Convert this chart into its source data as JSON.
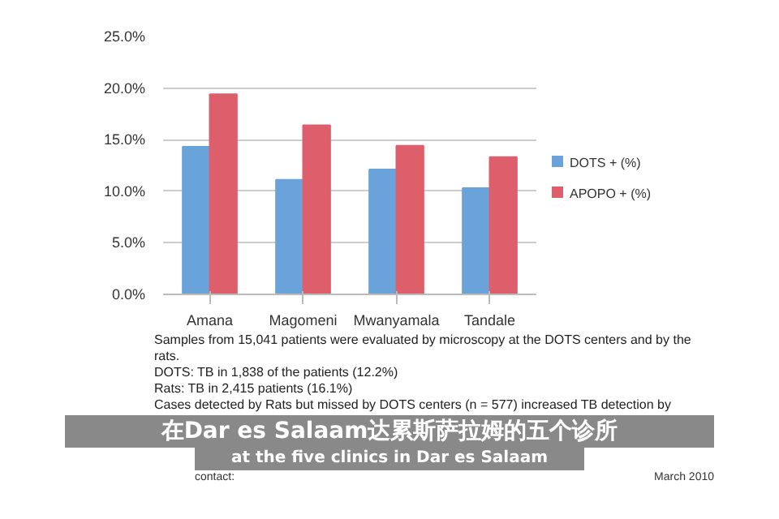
{
  "chart_data": {
    "type": "bar",
    "categories": [
      "Amana",
      "Magomeni",
      "Mwanyamala",
      "Tandale"
    ],
    "series": [
      {
        "name": "DOTS + (%)",
        "color": "#6aa3d9",
        "values": [
          14.3,
          11.1,
          12.1,
          10.3
        ]
      },
      {
        "name": "APOPO + (%)",
        "color": "#dd5f6c",
        "values": [
          19.4,
          16.4,
          14.4,
          13.3
        ]
      }
    ],
    "ylim": [
      0,
      25
    ],
    "yticks": [
      {
        "value": 0,
        "label": "0.0%"
      },
      {
        "value": 5,
        "label": "5.0%"
      },
      {
        "value": 10,
        "label": "10.0%"
      },
      {
        "value": 15,
        "label": "15.0%"
      },
      {
        "value": 20,
        "label": "20.0%"
      },
      {
        "value": 25,
        "label": "25.0%"
      }
    ],
    "grid": "y",
    "legend": "right",
    "annotations": [
      "Samples from 15,041 patients were evaluated by microscopy at the DOTS centers and by the rats.",
      "DOTS: TB in 1,838 of the patients (12.2%)",
      "Rats: TB in 2,415 patients (16.1%)",
      "Cases detected by Rats but missed by DOTS centers (n = 577) increased TB detection by",
      "在Dar es Salaam达累斯萨拉姆的五个诊所",
      "at the five clinics in Dar es Salaam",
      "contact:",
      "March 2010"
    ]
  }
}
